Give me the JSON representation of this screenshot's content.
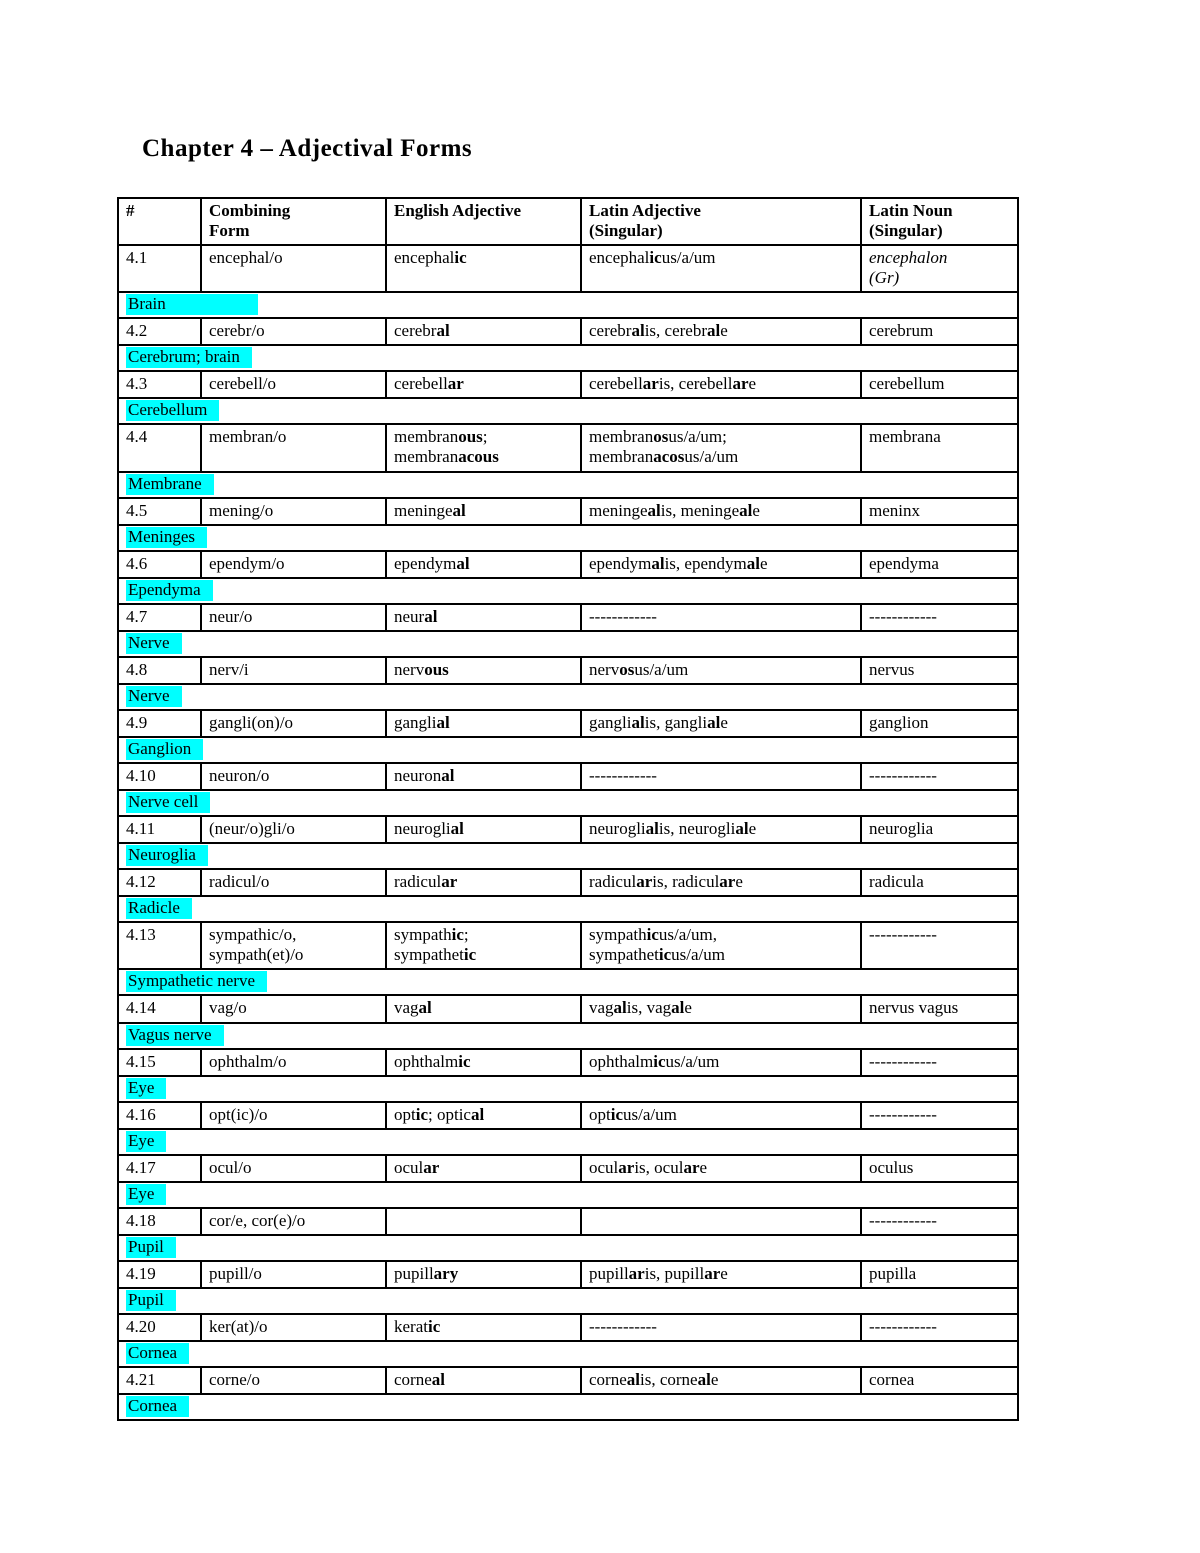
{
  "document": {
    "title": "Chapter 4 – Adjectival Forms"
  },
  "table": {
    "highlight_color": "#00ffff",
    "columns": [
      "#",
      "Combining\nForm",
      "English Adjective",
      "Latin Adjective\n(Singular)",
      "Latin Noun\n(Singular)"
    ],
    "entries": [
      {
        "num": "4.1",
        "combining_form": "encephal/o",
        "english_adjective": "encephal**ic**",
        "latin_adjective": "encephal**ic**us/a/um",
        "latin_noun": "encephalon\n(Gr)",
        "latin_noun_italic": true,
        "meaning": "Brain",
        "meaning_extra_pad": 80
      },
      {
        "num": "4.2",
        "combining_form": "cerebr/o",
        "english_adjective": "cerebr**al**",
        "latin_adjective": "cerebr**al**is, cerebr**al**e",
        "latin_noun": "cerebrum",
        "meaning": "Cerebrum; brain"
      },
      {
        "num": "4.3",
        "combining_form": "cerebell/o",
        "english_adjective": "cerebell**ar**",
        "latin_adjective": "cerebell**ar**is, cerebell**ar**e",
        "latin_noun": "cerebellum",
        "meaning": "Cerebellum"
      },
      {
        "num": "4.4",
        "combining_form": "membran/o",
        "english_adjective": "membran**ous**;\nmembran**acous**",
        "latin_adjective": "membran**os**us/a/um;\nmembran**acos**us/a/um",
        "latin_noun": "membrana",
        "meaning": "Membrane"
      },
      {
        "num": "4.5",
        "combining_form": "mening/o",
        "english_adjective": "meninge**al**",
        "latin_adjective": "meninge**al**is, meninge**al**e",
        "latin_noun": "meninx",
        "meaning": "Meninges"
      },
      {
        "num": "4.6",
        "combining_form": "ependym/o",
        "english_adjective": "ependym**al**",
        "latin_adjective": "ependym**al**is, ependym**al**e",
        "latin_noun": "ependyma",
        "meaning": "Ependyma"
      },
      {
        "num": "4.7",
        "combining_form": "neur/o",
        "english_adjective": "neur**al**",
        "latin_adjective": "------------",
        "latin_noun": "------------",
        "meaning": "Nerve"
      },
      {
        "num": "4.8",
        "combining_form": "nerv/i",
        "english_adjective": "nerv**ous**",
        "latin_adjective": "nerv**os**us/a/um",
        "latin_noun": "nervus",
        "meaning": "Nerve"
      },
      {
        "num": "4.9",
        "combining_form": "gangli(on)/o",
        "english_adjective": "gangli**al**",
        "latin_adjective": "gangli**al**is, gangli**al**e",
        "latin_noun": "ganglion",
        "meaning": "Ganglion"
      },
      {
        "num": "4.10",
        "combining_form": "neuron/o",
        "english_adjective": "neuron**al**",
        "latin_adjective": "------------",
        "latin_noun": "------------",
        "meaning": "Nerve cell"
      },
      {
        "num": "4.11",
        "combining_form": "(neur/o)gli/o",
        "english_adjective": "neurogli**al**",
        "latin_adjective": "neurogli**al**is, neurogli**al**e",
        "latin_noun": "neuroglia",
        "meaning": "Neuroglia"
      },
      {
        "num": "4.12",
        "combining_form": "radicul/o",
        "english_adjective": "radicul**ar**",
        "latin_adjective": "radicul**ar**is, radicul**ar**e",
        "latin_noun": "radicula",
        "meaning": "Radicle"
      },
      {
        "num": "4.13",
        "combining_form": "sympathic/o,\nsympath(et)/o",
        "english_adjective": "sympath**ic**;\nsympathet**ic**",
        "latin_adjective": "sympath**ic**us/a/um,\nsympathet**ic**us/a/um",
        "latin_noun": "------------",
        "meaning": "Sympathetic nerve"
      },
      {
        "num": "4.14",
        "combining_form": "vag/o",
        "english_adjective": "vag**al**",
        "latin_adjective": "vag**al**is, vag**al**e",
        "latin_noun": "nervus vagus",
        "meaning": "Vagus nerve"
      },
      {
        "num": "4.15",
        "combining_form": "ophthalm/o",
        "english_adjective": "ophthalm**ic**",
        "latin_adjective": "ophthalm**ic**us/a/um",
        "latin_noun": "------------",
        "meaning": "Eye"
      },
      {
        "num": "4.16",
        "combining_form": "opt(ic)/o",
        "english_adjective": "opt**ic**; optic**al**",
        "latin_adjective": "opt**ic**us/a/um",
        "latin_noun": "------------",
        "meaning": "Eye"
      },
      {
        "num": "4.17",
        "combining_form": "ocul/o",
        "english_adjective": "ocul**ar**",
        "latin_adjective": "ocul**ar**is, ocul**ar**e",
        "latin_noun": "oculus",
        "meaning": "Eye"
      },
      {
        "num": "4.18",
        "combining_form": "cor/e, cor(e)/o",
        "english_adjective": "",
        "latin_adjective": "",
        "latin_noun": "------------",
        "meaning": "Pupil"
      },
      {
        "num": "4.19",
        "combining_form": "pupill/o",
        "english_adjective": "pupill**ary**",
        "latin_adjective": "pupill**ar**is, pupill**ar**e",
        "latin_noun": "pupilla",
        "meaning": "Pupil"
      },
      {
        "num": "4.20",
        "combining_form": "ker(at)/o",
        "english_adjective": "kerat**ic**",
        "latin_adjective": "------------",
        "latin_noun": "------------",
        "meaning": "Cornea"
      },
      {
        "num": "4.21",
        "combining_form": "corne/o",
        "english_adjective": "corne**al**",
        "latin_adjective": "corne**al**is, corne**al**e",
        "latin_noun": "cornea",
        "meaning": "Cornea"
      }
    ]
  }
}
